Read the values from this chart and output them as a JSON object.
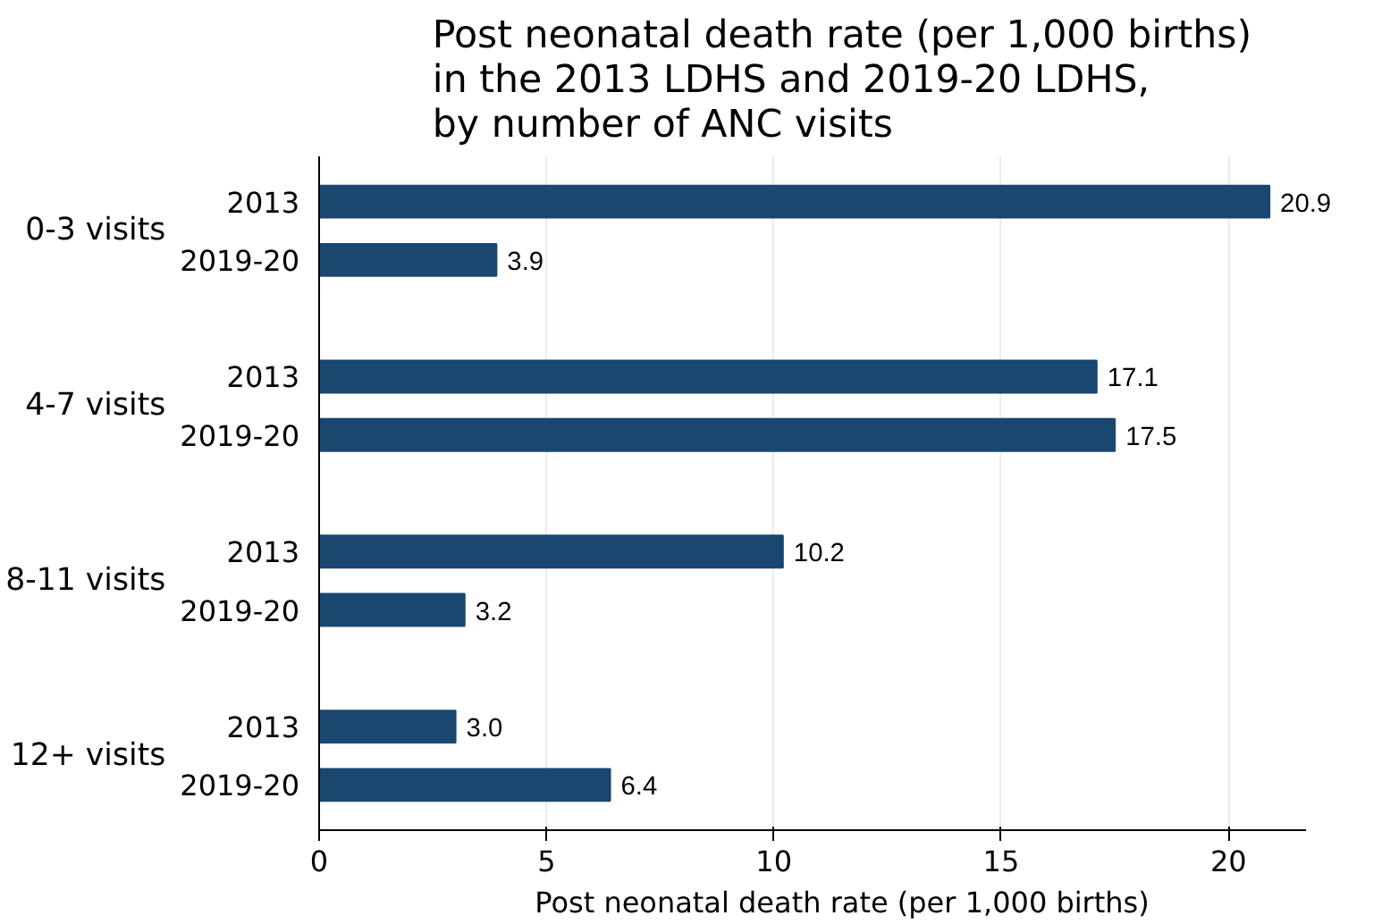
{
  "chart_data": {
    "type": "bar",
    "orientation": "horizontal",
    "title": "Post neonatal death rate (per 1,000 births)\nin the 2013 LDHS and 2019-20 LDHS,\nby number of ANC visits",
    "xlabel": "Post neonatal death rate (per 1,000 births)",
    "categories": [
      "0-3 visits",
      "4-7 visits",
      "8-11 visits",
      "12+ visits"
    ],
    "series": [
      {
        "name": "2013",
        "color": "#1a476f",
        "values": [
          20.9,
          17.1,
          10.2,
          3.0
        ],
        "value_labels": [
          "20.9",
          "17.1",
          "10.2",
          "3.0"
        ]
      },
      {
        "name": "2019-20",
        "color": "#1a476f",
        "values": [
          3.9,
          17.5,
          3.2,
          6.4
        ],
        "value_labels": [
          "3.9",
          "17.5",
          "3.2",
          "6.4"
        ]
      }
    ],
    "xlim": [
      0,
      21.7
    ],
    "xticks": [
      0,
      5,
      10,
      15,
      20
    ],
    "grid": "x"
  }
}
